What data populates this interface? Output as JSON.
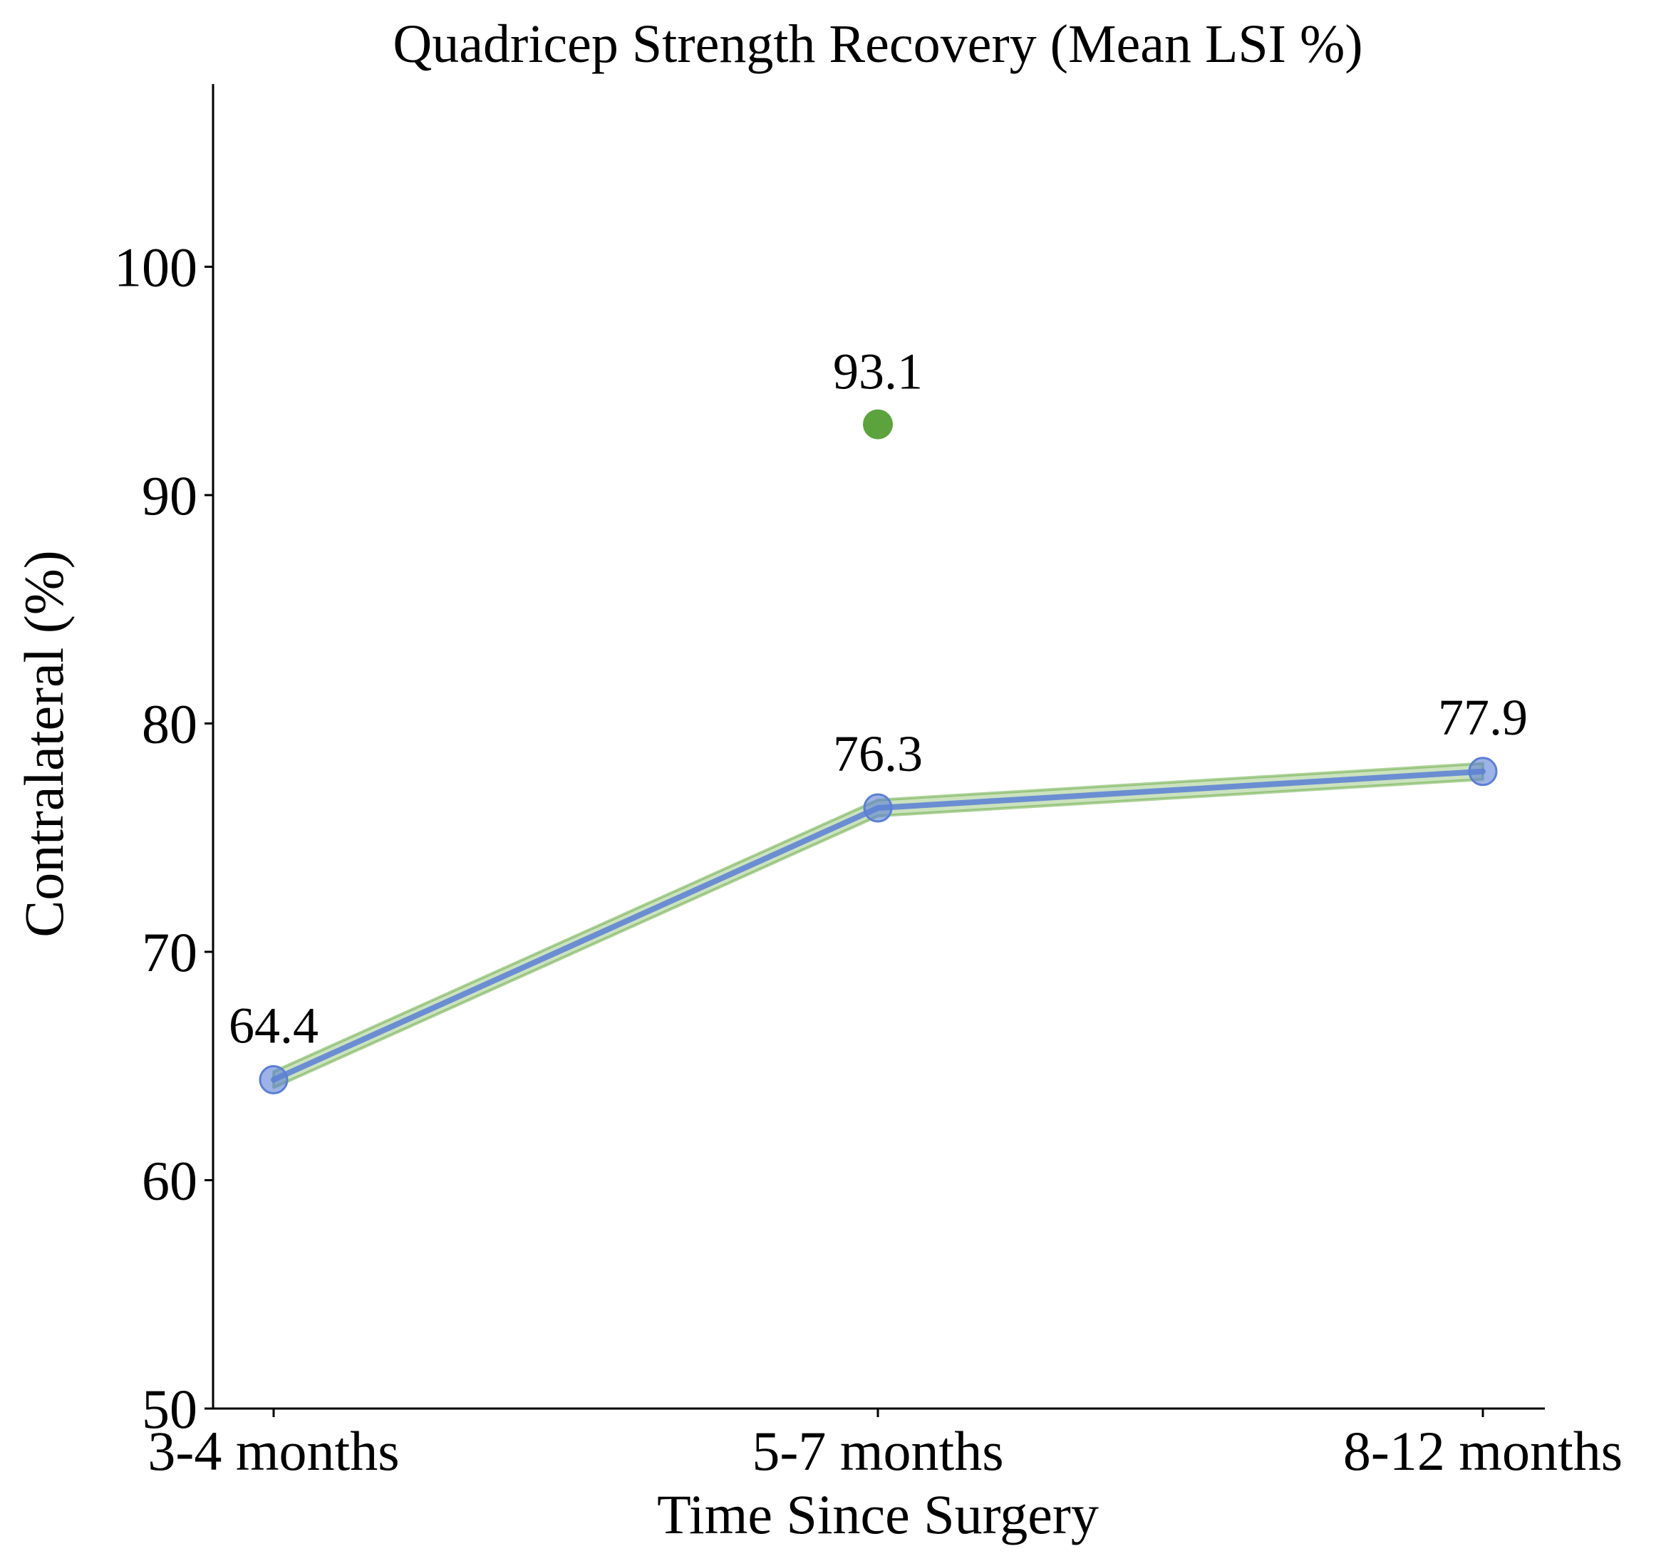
{
  "chart_data": {
    "type": "line",
    "title": "Quadricep Strength Recovery (Mean LSI %)",
    "xlabel": "Time Since Surgery",
    "ylabel": "Contralateral (%)",
    "categories": [
      "3-4 months",
      "5-7 months",
      "8-12 months"
    ],
    "ylim": [
      50,
      108
    ],
    "yticks": [
      50,
      60,
      70,
      80,
      90,
      100
    ],
    "grid": false,
    "series": [
      {
        "values": [
          64.4,
          76.3,
          77.9
        ],
        "labels": [
          "64.4",
          "76.3",
          "77.9"
        ],
        "color": "#5b7fd6",
        "band_color": "#6aab44",
        "band_halfwidth": 0.35
      },
      {
        "type": "scatter",
        "points": [
          {
            "category": "5-7 months",
            "value": 93.1,
            "label": "93.1"
          }
        ],
        "color": "#5ca33d"
      }
    ]
  }
}
